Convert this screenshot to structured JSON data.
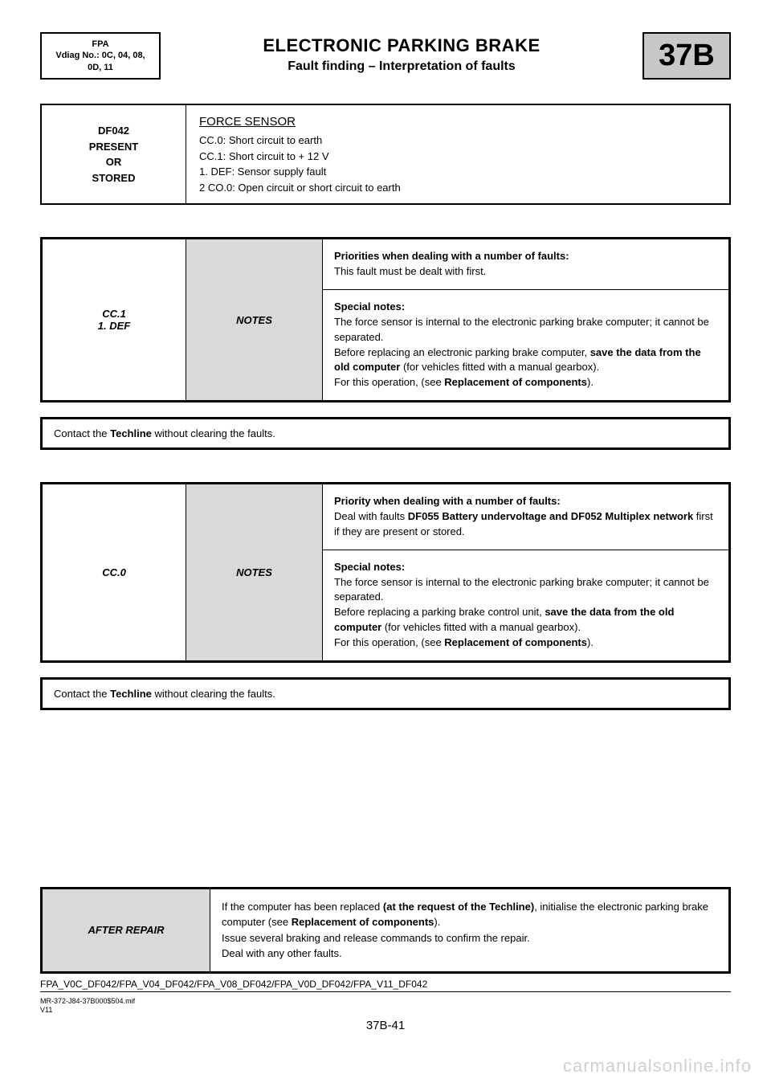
{
  "header": {
    "left_line1": "FPA",
    "left_line2": "Vdiag No.: 0C, 04, 08,",
    "left_line3": "0D, 11",
    "title": "ELECTRONIC PARKING BRAKE",
    "subtitle": "Fault finding – Interpretation of faults",
    "section": "37B"
  },
  "fault": {
    "code_line1": "DF042",
    "code_line2": "PRESENT",
    "code_line3": "OR",
    "code_line4": "STORED",
    "title": "FORCE SENSOR",
    "d1": "CC.0: Short circuit to earth",
    "d2": "CC.1: Short circuit to + 12 V",
    "d3": "1. DEF: Sensor supply fault",
    "d4": "2 CO.0: Open circuit or short circuit to earth"
  },
  "notes1": {
    "code_line1": "CC.1",
    "code_line2": "1. DEF",
    "label": "NOTES",
    "prio_label": "Priorities when dealing with a number of faults:",
    "prio_text": "This fault must be dealt with first.",
    "sp_label": "Special notes:",
    "sp_l1": "The force sensor is internal to the electronic parking brake computer; it cannot be separated.",
    "sp_l2a": "Before replacing an electronic parking brake computer, ",
    "sp_l2b": "save the data from the old computer",
    "sp_l2c": " (for vehicles fitted with a manual gearbox).",
    "sp_l3a": "For this operation, (see ",
    "sp_l3b": "Replacement of components",
    "sp_l3c": ")."
  },
  "contact1_a": "Contact the ",
  "contact1_b": "Techline",
  "contact1_c": " without clearing the faults.",
  "notes2": {
    "code": "CC.0",
    "label": "NOTES",
    "prio_label": "Priority when dealing with a number of faults:",
    "prio_t1": "Deal with faults ",
    "prio_t2": "DF055 Battery undervoltage and DF052 Multiplex network",
    "prio_t3": " first if they are present or stored.",
    "sp_label": "Special notes:",
    "sp_l1": "The force sensor is internal to the electronic parking brake computer; it cannot be separated.",
    "sp_l2a": "Before replacing a parking brake control unit, ",
    "sp_l2b": "save the data from the old computer",
    "sp_l2c": " (for vehicles fitted with a manual gearbox).",
    "sp_l3a": "For this operation, (see ",
    "sp_l3b": "Replacement of components",
    "sp_l3c": ")."
  },
  "contact2_a": "Contact the ",
  "contact2_b": "Techline",
  "contact2_c": " without clearing the faults.",
  "after_repair": {
    "label": "AFTER REPAIR",
    "l1a": "If the computer has been replaced ",
    "l1b": "(at the request of the Techline)",
    "l1c": ", initialise the electronic parking brake computer (see ",
    "l1d": "Replacement of components",
    "l1e": ").",
    "l2": "Issue several braking and release commands to confirm the repair.",
    "l3": "Deal with any other faults."
  },
  "footer": {
    "code": "FPA_V0C_DF042/FPA_V04_DF042/FPA_V08_DF042/FPA_V0D_DF042/FPA_V11_DF042",
    "small1": "MR-372-J84-37B000$504.mif",
    "small2": "V11",
    "page": "37B-41",
    "watermark": "carmanualsonline.info"
  }
}
